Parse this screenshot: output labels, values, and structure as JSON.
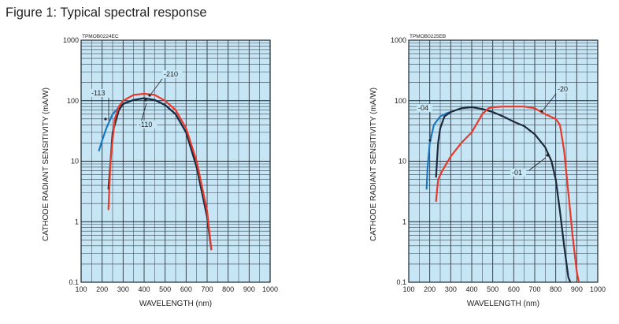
{
  "figure": {
    "title": "Figure 1: Typical spectral response"
  },
  "chart_data": [
    {
      "type": "line",
      "code": "TPMOB0224EC",
      "xlabel": "WAVELENGTH (nm)",
      "ylabel": "CATHODE RADIANT SENSITIVITY (mA/W)",
      "xlim": [
        100,
        1000
      ],
      "ylim": [
        0.1,
        1000
      ],
      "yscale": "log",
      "grid": true,
      "x_ticks": [
        "100",
        "200",
        "300",
        "400",
        "500",
        "600",
        "700",
        "800",
        "900",
        "1000"
      ],
      "y_ticks": [
        "0.1",
        "1",
        "10",
        "100",
        "1000"
      ],
      "series": [
        {
          "name": "-113",
          "color": "#1a78c2",
          "x": [
            185,
            200,
            220,
            250,
            280,
            300,
            350,
            400,
            450,
            500,
            550,
            600,
            650,
            700,
            720
          ],
          "y": [
            15,
            22,
            35,
            60,
            78,
            90,
            103,
            110,
            103,
            85,
            60,
            30,
            8,
            1.2,
            0.35
          ]
        },
        {
          "name": "-110",
          "color": "#1c2a3c",
          "x": [
            230,
            250,
            280,
            300,
            350,
            400,
            450,
            500,
            550,
            600,
            650,
            700,
            720
          ],
          "y": [
            3.5,
            30,
            70,
            88,
            103,
            110,
            103,
            85,
            60,
            30,
            8,
            1.2,
            0.35
          ]
        },
        {
          "name": "-210",
          "color": "#e8392a",
          "x": [
            230,
            240,
            260,
            280,
            300,
            350,
            400,
            450,
            500,
            550,
            600,
            650,
            700,
            720
          ],
          "y": [
            1.6,
            10,
            50,
            80,
            100,
            125,
            130,
            125,
            100,
            70,
            35,
            10,
            1.5,
            0.35
          ]
        }
      ],
      "annotations": [
        "-113",
        "-110",
        "-210"
      ]
    },
    {
      "type": "line",
      "code": "TPMOB0225EB",
      "xlabel": "WAVELENGTH (nm)",
      "ylabel": "CATHODE RADIANT SENSITIVITY (mA/W)",
      "xlim": [
        100,
        1000
      ],
      "ylim": [
        0.1,
        1000
      ],
      "yscale": "log",
      "grid": true,
      "x_ticks": [
        "100",
        "200",
        "300",
        "400",
        "500",
        "600",
        "700",
        "800",
        "900",
        "1000"
      ],
      "y_ticks": [
        "0.1",
        "1",
        "10",
        "100",
        "1000"
      ],
      "series": [
        {
          "name": "-04",
          "color": "#1a78c2",
          "x": [
            185,
            190,
            200,
            220,
            250,
            280,
            300
          ],
          "y": [
            3.5,
            8,
            20,
            40,
            55,
            62,
            65
          ]
        },
        {
          "name": "-01",
          "color": "#1c2a3c",
          "x": [
            230,
            240,
            250,
            270,
            300,
            350,
            400,
            450,
            500,
            550,
            600,
            650,
            700,
            750,
            780,
            800,
            820,
            840,
            860,
            870
          ],
          "y": [
            5.5,
            20,
            35,
            55,
            65,
            75,
            78,
            73,
            65,
            55,
            45,
            38,
            28,
            17,
            10,
            5,
            1.5,
            0.4,
            0.12,
            0.1
          ]
        },
        {
          "name": "-20",
          "color": "#e8392a",
          "x": [
            230,
            240,
            260,
            300,
            350,
            400,
            450,
            480,
            500,
            550,
            600,
            650,
            700,
            750,
            800,
            820,
            840,
            860,
            880,
            900,
            910
          ],
          "y": [
            2.2,
            5,
            7,
            12,
            20,
            30,
            60,
            75,
            78,
            80,
            80,
            80,
            75,
            60,
            50,
            40,
            15,
            3,
            0.6,
            0.15,
            0.1
          ]
        }
      ],
      "annotations": [
        "-04",
        "-01",
        "-20"
      ]
    }
  ]
}
